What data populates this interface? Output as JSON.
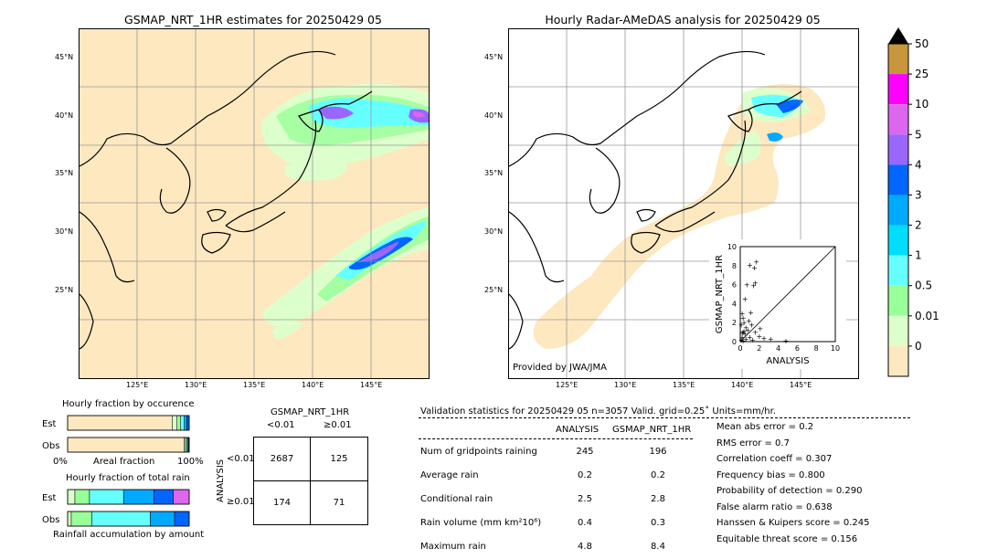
{
  "left_map": {
    "title": "GSMAP_NRT_1HR estimates for 20250429 05",
    "lon_ticks": [
      "125°E",
      "130°E",
      "135°E",
      "140°E",
      "145°E"
    ],
    "lat_ticks": [
      "45°N",
      "40°N",
      "35°N",
      "30°N",
      "25°N"
    ]
  },
  "right_map": {
    "title": "Hourly Radar-AMeDAS analysis for 20250429 05",
    "lon_ticks": [
      "125°E",
      "130°E",
      "135°E",
      "140°E",
      "145°E"
    ],
    "lat_ticks": [
      "45°N",
      "40°N",
      "35°N",
      "30°N",
      "25°N"
    ],
    "credit": "Provided by JWA/JMA"
  },
  "colorbar": {
    "labels": [
      "50",
      "25",
      "10",
      "5",
      "4",
      "3",
      "2",
      "1",
      "0.5",
      "0.01",
      "0"
    ],
    "colors": [
      "#c8963c",
      "#ff00ff",
      "#dd66ee",
      "#9966ff",
      "#0066ff",
      "#00aaff",
      "#00ddff",
      "#66ffff",
      "#99ff99",
      "#ddffcc",
      "#fde8c0"
    ]
  },
  "chart_data": [
    {
      "type": "scatter",
      "xlabel": "ANALYSIS",
      "ylabel": "GSMAP_NRT_1HR",
      "xlim": [
        0,
        10
      ],
      "ylim": [
        0,
        10
      ],
      "x_ticks": [
        "0",
        "2",
        "4",
        "6",
        "8",
        "10"
      ],
      "y_ticks": [
        "0",
        "2",
        "4",
        "6",
        "8",
        "10"
      ],
      "points": [
        [
          0.1,
          0.2
        ],
        [
          0.2,
          0.5
        ],
        [
          0.3,
          1.0
        ],
        [
          0.4,
          2.0
        ],
        [
          0.5,
          0.8
        ],
        [
          0.6,
          1.5
        ],
        [
          0.2,
          3.0
        ],
        [
          0.3,
          2.5
        ],
        [
          0.8,
          1.2
        ],
        [
          1.0,
          0.5
        ],
        [
          1.2,
          1.8
        ],
        [
          0.5,
          4.5
        ],
        [
          0.7,
          6.0
        ],
        [
          1.5,
          7.8
        ],
        [
          1.7,
          8.4
        ],
        [
          1.0,
          8.1
        ],
        [
          2.0,
          0.6
        ],
        [
          2.5,
          0.4
        ],
        [
          0.1,
          1.8
        ],
        [
          0.4,
          1.1
        ],
        [
          0.9,
          2.2
        ],
        [
          1.1,
          3.1
        ],
        [
          1.6,
          1.0
        ],
        [
          0.3,
          0.1
        ],
        [
          1.4,
          5.9
        ],
        [
          1.6,
          6.2
        ],
        [
          3.2,
          0.3
        ],
        [
          2.1,
          1.4
        ],
        [
          0.6,
          0.3
        ],
        [
          0.2,
          0.9
        ],
        [
          4.8,
          0.1
        ],
        [
          1.3,
          0.2
        ]
      ]
    },
    {
      "type": "bar",
      "title": "Hourly fraction by occurence",
      "categories": [
        "Est",
        "Obs"
      ],
      "xlabel_left": "0%",
      "xlabel_mid": "Areal fraction",
      "xlabel_right": "100%",
      "series": [
        {
          "values": [
            0.86,
            0.96
          ]
        },
        {
          "values": [
            0.04,
            0.01
          ]
        },
        {
          "values": [
            0.03,
            0.01
          ]
        },
        {
          "values": [
            0.03,
            0.01
          ]
        },
        {
          "values": [
            0.02,
            0.005
          ]
        },
        {
          "values": [
            0.02,
            0.005
          ]
        }
      ]
    },
    {
      "type": "bar",
      "title": "Hourly fraction of total rain",
      "categories": [
        "Est",
        "Obs"
      ],
      "xlabel": "Rainfall accumulation by amount",
      "series": [
        {
          "values": [
            0.06,
            0.03
          ]
        },
        {
          "values": [
            0.12,
            0.17
          ]
        },
        {
          "values": [
            0.28,
            0.48
          ]
        },
        {
          "values": [
            0.25,
            0.2
          ]
        },
        {
          "values": [
            0.16,
            0.12
          ]
        },
        {
          "values": [
            0.13,
            0.0
          ]
        }
      ]
    }
  ],
  "contingency": {
    "title": "GSMAP_NRT_1HR",
    "col_headers": [
      "<0.01",
      "≥0.01"
    ],
    "row_label": "ANALYSIS",
    "row_headers": [
      "<0.01",
      "≥0.01"
    ],
    "cells": [
      [
        "2687",
        "125"
      ],
      [
        "174",
        "71"
      ]
    ]
  },
  "validation": {
    "header": "Validation statistics for 20250429 05  n=3057 Valid. grid=0.25˚ Units=mm/hr.",
    "col_analysis": "ANALYSIS",
    "col_gsmap": "GSMAP_NRT_1HR",
    "rows": [
      {
        "label": "Num of gridpoints raining",
        "a": "245",
        "g": "196"
      },
      {
        "label": "Average rain",
        "a": "0.2",
        "g": "0.2"
      },
      {
        "label": "Conditional rain",
        "a": "2.5",
        "g": "2.8"
      },
      {
        "label": "Rain volume (mm km²10⁶)",
        "a": "0.4",
        "g": "0.3"
      },
      {
        "label": "Maximum rain",
        "a": "4.8",
        "g": "8.4"
      }
    ],
    "scores": [
      "Mean abs error =    0.2",
      "RMS error =    0.7",
      "Correlation coeff =  0.307",
      "Frequency bias =  0.800",
      "Probability of detection =  0.290",
      "False alarm ratio =  0.638",
      "Hanssen & Kuipers score =  0.245",
      "Equitable threat score =  0.156"
    ]
  }
}
